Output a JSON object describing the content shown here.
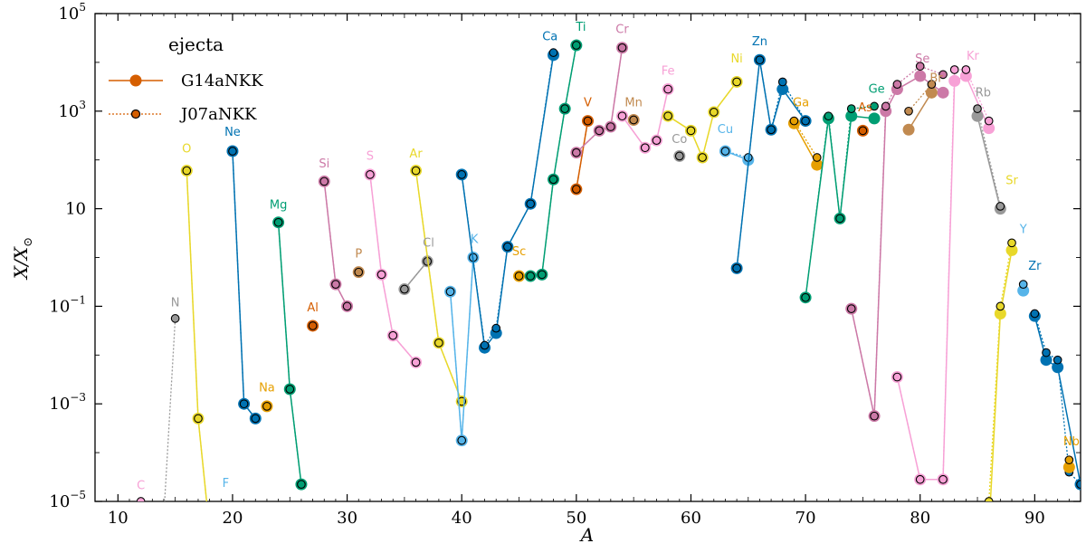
{
  "chart_data": {
    "type": "scatter",
    "title": "",
    "xlabel": "A",
    "ylabel_main": "X/X",
    "ylabel_sub": "⊙",
    "xlim": [
      8,
      94
    ],
    "ylim_log10": [
      -5,
      5
    ],
    "x_ticks": [
      10,
      20,
      30,
      40,
      50,
      60,
      70,
      80,
      90
    ],
    "y_ticks": [
      {
        "exp": -5,
        "label": "10",
        "sup": "−5"
      },
      {
        "exp": -3,
        "label": "10",
        "sup": "−3"
      },
      {
        "exp": -1,
        "label": "10",
        "sup": "−1"
      },
      {
        "exp": 1,
        "label": "10",
        "sup": ""
      },
      {
        "exp": 3,
        "label": "10",
        "sup": "3"
      },
      {
        "exp": 5,
        "label": "10",
        "sup": "5"
      }
    ],
    "legend": {
      "title": "ejecta",
      "entries": [
        {
          "name": "G14aNKK",
          "style": "solid-large"
        },
        {
          "name": "J07aNKK",
          "style": "dotted-small"
        }
      ],
      "position": "top-left"
    },
    "legend_color": "#d55e00",
    "elements": [
      {
        "name": "C",
        "color": "#f7a1d6",
        "label_at": [
          12,
          -4.75
        ],
        "G": [
          [
            12,
            -5.6
          ]
        ],
        "J": [
          [
            12,
            -5.0
          ],
          [
            13,
            -5.4
          ]
        ]
      },
      {
        "name": "N",
        "color": "#999999",
        "label_at": [
          15,
          -1.0
        ],
        "G": [
          [
            14,
            -5.6
          ]
        ],
        "J": [
          [
            14,
            -5.3
          ],
          [
            15,
            -1.25
          ]
        ]
      },
      {
        "name": "O",
        "color": "#e8d82a",
        "label_at": [
          16,
          2.15
        ],
        "G": [
          [
            16,
            1.78
          ],
          [
            17,
            -3.3
          ],
          [
            18,
            -5.6
          ]
        ],
        "J": [
          [
            16,
            1.78
          ],
          [
            17,
            -3.3
          ],
          [
            18,
            -5.6
          ]
        ]
      },
      {
        "name": "F",
        "color": "#56b4e9",
        "label_at": [
          19.4,
          -4.7
        ],
        "G": [],
        "J": []
      },
      {
        "name": "Ne",
        "color": "#0072b2",
        "label_at": [
          20,
          2.5
        ],
        "G": [
          [
            20,
            2.18
          ],
          [
            21,
            -3.0
          ],
          [
            22,
            -3.3
          ]
        ],
        "J": [
          [
            20,
            2.18
          ],
          [
            21,
            -3.0
          ],
          [
            22,
            -3.3
          ]
        ]
      },
      {
        "name": "Na",
        "color": "#e69f00",
        "label_at": [
          23,
          -2.75
        ],
        "G": [
          [
            23,
            -3.05
          ]
        ],
        "J": [
          [
            23,
            -3.05
          ]
        ]
      },
      {
        "name": "Mg",
        "color": "#009e73",
        "label_at": [
          24,
          1.0
        ],
        "G": [
          [
            24,
            0.72
          ],
          [
            25,
            -2.7
          ],
          [
            26,
            -4.65
          ]
        ],
        "J": [
          [
            24,
            0.72
          ],
          [
            25,
            -2.7
          ],
          [
            26,
            -4.65
          ]
        ]
      },
      {
        "name": "Al",
        "color": "#d55e00",
        "label_at": [
          27,
          -1.1
        ],
        "G": [
          [
            27,
            -1.4
          ]
        ],
        "J": [
          [
            27,
            -1.4
          ]
        ]
      },
      {
        "name": "Si",
        "color": "#cc79a7",
        "label_at": [
          28,
          1.85
        ],
        "G": [
          [
            28,
            1.56
          ],
          [
            29,
            -0.55
          ],
          [
            30,
            -1.0
          ]
        ],
        "J": [
          [
            28,
            1.56
          ],
          [
            29,
            -0.55
          ],
          [
            30,
            -1.0
          ]
        ]
      },
      {
        "name": "P",
        "color": "#c18a50",
        "label_at": [
          31,
          0.0
        ],
        "G": [
          [
            31,
            -0.3
          ]
        ],
        "J": [
          [
            31,
            -0.3
          ]
        ]
      },
      {
        "name": "S",
        "color": "#f7a1d6",
        "label_at": [
          32,
          2.0
        ],
        "G": [
          [
            32,
            1.7
          ],
          [
            33,
            -0.35
          ],
          [
            34,
            -1.6
          ],
          [
            36,
            -2.15
          ]
        ],
        "J": [
          [
            32,
            1.7
          ],
          [
            33,
            -0.35
          ],
          [
            34,
            -1.6
          ],
          [
            36,
            -2.15
          ]
        ]
      },
      {
        "name": "Cl",
        "color": "#999999",
        "label_at": [
          37.1,
          0.22
        ],
        "G": [
          [
            35,
            -0.65
          ],
          [
            37,
            -0.08
          ]
        ],
        "J": [
          [
            35,
            -0.65
          ],
          [
            37,
            -0.08
          ]
        ]
      },
      {
        "name": "Ar",
        "color": "#e8d82a",
        "label_at": [
          36,
          2.05
        ],
        "G": [
          [
            36,
            1.78
          ],
          [
            38,
            -1.75
          ],
          [
            40,
            -2.95
          ]
        ],
        "J": [
          [
            36,
            1.78
          ],
          [
            38,
            -1.75
          ],
          [
            40,
            -2.95
          ]
        ]
      },
      {
        "name": "K",
        "color": "#56b4e9",
        "label_at": [
          41.1,
          0.3
        ],
        "G": [
          [
            39,
            -0.7
          ],
          [
            40,
            -3.75
          ],
          [
            41,
            0.0
          ]
        ],
        "J": [
          [
            39,
            -0.7
          ],
          [
            40,
            -3.75
          ],
          [
            41,
            0.0
          ]
        ]
      },
      {
        "name": "Ca",
        "color": "#0072b2",
        "label_at": [
          47.7,
          4.45
        ],
        "G": [
          [
            40,
            1.7
          ],
          [
            42,
            -1.85
          ],
          [
            43,
            -1.55
          ],
          [
            44,
            0.22
          ],
          [
            46,
            1.1
          ],
          [
            48,
            4.15
          ]
        ],
        "J": [
          [
            40,
            1.7
          ],
          [
            42,
            -1.8
          ],
          [
            43,
            -1.45
          ],
          [
            44,
            0.22
          ],
          [
            46,
            1.1
          ],
          [
            48,
            4.2
          ]
        ]
      },
      {
        "name": "Sc",
        "color": "#e69f00",
        "label_at": [
          45,
          0.05
        ],
        "G": [
          [
            45,
            -0.38
          ]
        ],
        "J": [
          [
            45,
            -0.38
          ]
        ]
      },
      {
        "name": "Ti",
        "color": "#009e73",
        "label_at": [
          50.4,
          4.65
        ],
        "G": [
          [
            46,
            -0.38
          ],
          [
            47,
            -0.35
          ],
          [
            48,
            1.6
          ],
          [
            49,
            3.05
          ],
          [
            50,
            4.35
          ]
        ],
        "J": [
          [
            46,
            -0.38
          ],
          [
            47,
            -0.35
          ],
          [
            48,
            1.6
          ],
          [
            49,
            3.05
          ],
          [
            50,
            4.35
          ]
        ]
      },
      {
        "name": "V",
        "color": "#d55e00",
        "label_at": [
          51.0,
          3.1
        ],
        "G": [
          [
            50,
            1.4
          ],
          [
            51,
            2.8
          ]
        ],
        "J": [
          [
            50,
            1.4
          ],
          [
            51,
            2.8
          ]
        ]
      },
      {
        "name": "Cr",
        "color": "#cc79a7",
        "label_at": [
          54.0,
          4.6
        ],
        "G": [
          [
            50,
            2.15
          ],
          [
            52,
            2.6
          ],
          [
            53,
            2.68
          ],
          [
            54,
            4.3
          ]
        ],
        "J": [
          [
            50,
            2.15
          ],
          [
            52,
            2.6
          ],
          [
            53,
            2.68
          ],
          [
            54,
            4.3
          ]
        ]
      },
      {
        "name": "Mn",
        "color": "#c18a50",
        "label_at": [
          55.0,
          3.1
        ],
        "G": [
          [
            55,
            2.82
          ]
        ],
        "J": [
          [
            55,
            2.82
          ]
        ]
      },
      {
        "name": "Fe",
        "color": "#f7a1d6",
        "label_at": [
          58.0,
          3.75
        ],
        "G": [
          [
            54,
            2.9
          ],
          [
            56,
            2.25
          ],
          [
            57,
            2.4
          ],
          [
            58,
            3.45
          ]
        ],
        "J": [
          [
            54,
            2.9
          ],
          [
            56,
            2.25
          ],
          [
            57,
            2.4
          ],
          [
            58,
            3.45
          ]
        ]
      },
      {
        "name": "Co",
        "color": "#999999",
        "label_at": [
          59.0,
          2.35
        ],
        "G": [
          [
            59,
            2.08
          ]
        ],
        "J": [
          [
            59,
            2.08
          ]
        ]
      },
      {
        "name": "Ni",
        "color": "#e8d82a",
        "label_at": [
          64.0,
          4.0
        ],
        "G": [
          [
            58,
            2.9
          ],
          [
            60,
            2.6
          ],
          [
            61,
            2.05
          ],
          [
            62,
            2.98
          ],
          [
            64,
            3.6
          ]
        ],
        "J": [
          [
            58,
            2.9
          ],
          [
            60,
            2.6
          ],
          [
            61,
            2.05
          ],
          [
            62,
            2.98
          ],
          [
            64,
            3.6
          ]
        ]
      },
      {
        "name": "Cu",
        "color": "#56b4e9",
        "label_at": [
          63.0,
          2.55
        ],
        "G": [
          [
            63,
            2.18
          ],
          [
            65,
            2.0
          ]
        ],
        "J": [
          [
            63,
            2.18
          ],
          [
            65,
            2.05
          ]
        ]
      },
      {
        "name": "Zn",
        "color": "#0072b2",
        "label_at": [
          66.0,
          4.35
        ],
        "G": [
          [
            64,
            -0.22
          ],
          [
            66,
            4.05
          ],
          [
            67,
            2.62
          ],
          [
            68,
            3.45
          ],
          [
            70,
            2.8
          ]
        ],
        "J": [
          [
            64,
            -0.22
          ],
          [
            66,
            4.05
          ],
          [
            67,
            2.62
          ],
          [
            68,
            3.6
          ],
          [
            70,
            2.8
          ]
        ]
      },
      {
        "name": "Ga",
        "color": "#e69f00",
        "label_at": [
          69.6,
          3.1
        ],
        "G": [
          [
            69,
            2.75
          ],
          [
            71,
            1.9
          ]
        ],
        "J": [
          [
            69,
            2.8
          ],
          [
            71,
            2.05
          ]
        ]
      },
      {
        "name": "Ge",
        "color": "#009e73",
        "label_at": [
          76.2,
          3.38
        ],
        "G": [
          [
            70,
            -0.82
          ],
          [
            72,
            2.85
          ],
          [
            73,
            0.8
          ],
          [
            74,
            2.9
          ],
          [
            76,
            2.85
          ]
        ],
        "J": [
          [
            70,
            -0.82
          ],
          [
            72,
            2.9
          ],
          [
            73,
            0.8
          ],
          [
            74,
            3.05
          ],
          [
            76,
            3.1
          ]
        ]
      },
      {
        "name": "As",
        "color": "#d55e00",
        "label_at": [
          75.2,
          3.0
        ],
        "G": [
          [
            75,
            2.6
          ]
        ],
        "J": [
          [
            75,
            2.6
          ]
        ]
      },
      {
        "name": "Se",
        "color": "#cc79a7",
        "label_at": [
          80.2,
          4.0
        ],
        "G": [
          [
            74,
            -1.05
          ],
          [
            76,
            -3.25
          ],
          [
            77,
            3.0
          ],
          [
            78,
            3.45
          ],
          [
            80,
            3.72
          ],
          [
            82,
            3.38
          ]
        ],
        "J": [
          [
            74,
            -1.05
          ],
          [
            76,
            -3.25
          ],
          [
            77,
            3.1
          ],
          [
            78,
            3.55
          ],
          [
            80,
            3.92
          ],
          [
            82,
            3.75
          ]
        ]
      },
      {
        "name": "Br",
        "color": "#c18a50",
        "label_at": [
          81.4,
          3.6
        ],
        "G": [
          [
            79,
            2.62
          ],
          [
            81,
            3.38
          ]
        ],
        "J": [
          [
            79,
            3.0
          ],
          [
            81,
            3.55
          ]
        ]
      },
      {
        "name": "Kr",
        "color": "#f7a1d6",
        "label_at": [
          84.6,
          4.05
        ],
        "G": [
          [
            78,
            -2.45
          ],
          [
            80,
            -4.55
          ],
          [
            82,
            -4.55
          ],
          [
            83,
            3.62
          ],
          [
            84,
            3.72
          ],
          [
            86,
            2.65
          ]
        ],
        "J": [
          [
            78,
            -2.45
          ],
          [
            80,
            -4.55
          ],
          [
            82,
            -4.55
          ],
          [
            83,
            3.85
          ],
          [
            84,
            3.85
          ],
          [
            86,
            2.8
          ]
        ]
      },
      {
        "name": "Rb",
        "color": "#999999",
        "label_at": [
          85.5,
          3.3
        ],
        "G": [
          [
            85,
            2.9
          ],
          [
            87,
            1.0
          ]
        ],
        "J": [
          [
            85,
            3.05
          ],
          [
            87,
            1.05
          ]
        ]
      },
      {
        "name": "Sr",
        "color": "#e8d82a",
        "label_at": [
          88.0,
          1.5
        ],
        "G": [
          [
            86,
            -5.6
          ],
          [
            87,
            -1.15
          ],
          [
            88,
            0.15
          ]
        ],
        "J": [
          [
            86,
            -5.0
          ],
          [
            87,
            -1.0
          ],
          [
            88,
            0.3
          ]
        ]
      },
      {
        "name": "Y",
        "color": "#56b4e9",
        "label_at": [
          89.0,
          0.5
        ],
        "G": [
          [
            89,
            -0.68
          ]
        ],
        "J": [
          [
            89,
            -0.55
          ]
        ]
      },
      {
        "name": "Zr",
        "color": "#0072b2",
        "label_at": [
          90.0,
          -0.25
        ],
        "G": [
          [
            90,
            -1.2
          ],
          [
            91,
            -2.1
          ],
          [
            92,
            -2.25
          ],
          [
            94,
            -4.65
          ]
        ],
        "J": [
          [
            90,
            -1.15
          ],
          [
            91,
            -1.95
          ],
          [
            92,
            -2.1
          ],
          [
            93,
            -4.4
          ],
          [
            94,
            -4.65
          ]
        ]
      },
      {
        "name": "Nb",
        "color": "#e69f00",
        "label_at": [
          93.2,
          -3.85
        ],
        "G": [
          [
            93,
            -4.3
          ]
        ],
        "J": [
          [
            93,
            -4.15
          ]
        ]
      }
    ]
  }
}
